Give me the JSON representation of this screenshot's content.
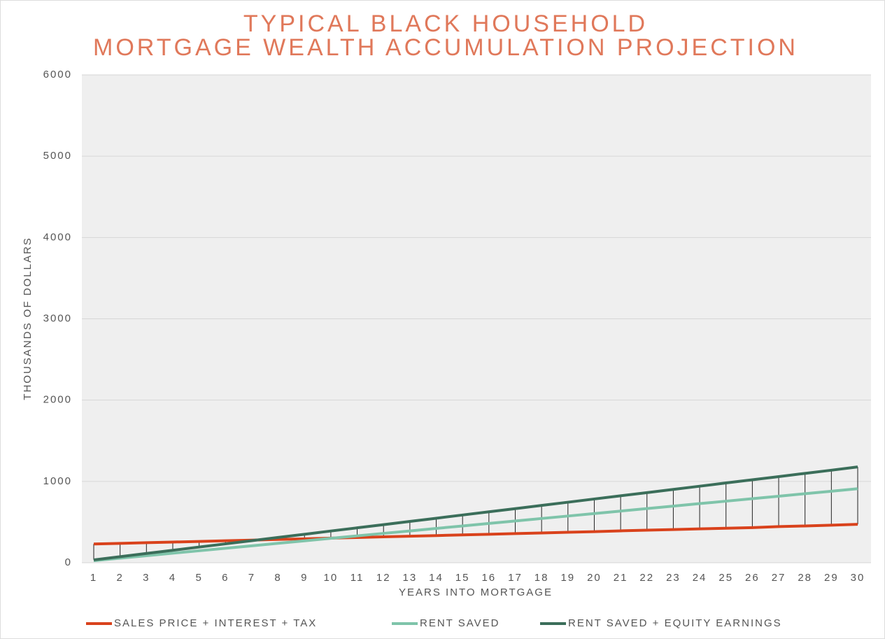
{
  "chart_data": {
    "type": "line",
    "title": [
      "TYPICAL BLACK HOUSEHOLD",
      "MORTGAGE WEALTH ACCUMULATION PROJECTION"
    ],
    "xlabel": "YEARS INTO MORTGAGE",
    "ylabel": "THOUSANDS OF DOLLARS",
    "categories": [
      1,
      2,
      3,
      4,
      5,
      6,
      7,
      8,
      9,
      10,
      11,
      12,
      13,
      14,
      15,
      16,
      17,
      18,
      19,
      20,
      21,
      22,
      23,
      24,
      25,
      26,
      27,
      28,
      29,
      30
    ],
    "series": [
      {
        "name": "SALES PRICE + INTEREST + TAX",
        "color": "#d9421c",
        "values": [
          230,
          238,
          246,
          254,
          262,
          270,
          278,
          286,
          294,
          302,
          310,
          318,
          326,
          334,
          342,
          350,
          358,
          366,
          374,
          382,
          392,
          400,
          408,
          416,
          424,
          432,
          444,
          452,
          462,
          472
        ]
      },
      {
        "name": "RENT SAVED",
        "color": "#7fc4aa",
        "values": [
          25,
          56,
          86,
          117,
          147,
          178,
          208,
          239,
          269,
          300,
          330,
          361,
          391,
          422,
          452,
          483,
          513,
          544,
          574,
          605,
          635,
          666,
          696,
          727,
          757,
          788,
          818,
          849,
          879,
          910
        ]
      },
      {
        "name": "RENT SAVED + EQUITY EARNINGS",
        "color": "#3b6e5a",
        "values": [
          35,
          74,
          114,
          153,
          193,
          232,
          271,
          311,
          350,
          390,
          429,
          468,
          508,
          547,
          587,
          626,
          665,
          705,
          744,
          784,
          823,
          862,
          902,
          941,
          981,
          1020,
          1059,
          1099,
          1138,
          1178
        ]
      }
    ],
    "ylim": [
      0,
      6000
    ],
    "yticks": [
      0,
      1000,
      2000,
      3000,
      4000,
      5000,
      6000
    ],
    "grid": true,
    "legend": "bottom"
  }
}
